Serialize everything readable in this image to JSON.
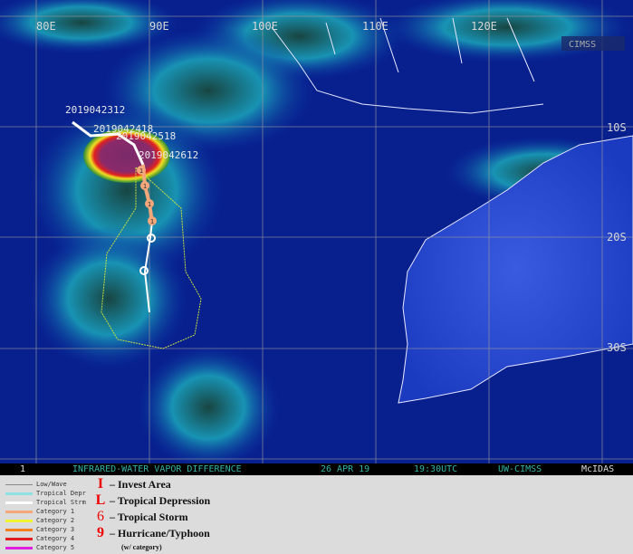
{
  "map": {
    "longitude_labels": [
      "80E",
      "90E",
      "100E",
      "110E",
      "120E"
    ],
    "latitude_labels": [
      "10S",
      "20S",
      "30S"
    ],
    "logo_text": "CIMSS",
    "track": {
      "fix_labels": [
        "2019042312",
        "2019042418",
        "2019042518",
        "2019042612"
      ],
      "category_marker": "1",
      "colors": {
        "tropical_storm": "#ffffff",
        "category_1": "#f4a77a",
        "cone": "#c8e040"
      }
    }
  },
  "status_bar": {
    "frame": "1",
    "product": "INFRARED-WATER VAPOR DIFFERENCE",
    "date": "26 APR 19",
    "time": "19:30UTC",
    "source": "UW-CIMSS",
    "software": "McIDAS"
  },
  "legend": {
    "lines": [
      {
        "label": "Low/Wave",
        "color": "#888888"
      },
      {
        "label": "Tropical Depr",
        "color": "#8fe0e0"
      },
      {
        "label": "Tropical Strm",
        "color": "#ffffff"
      },
      {
        "label": "Category 1",
        "color": "#f4a77a"
      },
      {
        "label": "Category 2",
        "color": "#f4f430"
      },
      {
        "label": "Category 3",
        "color": "#f08020"
      },
      {
        "label": "Category 4",
        "color": "#e02020"
      },
      {
        "label": "Category 5",
        "color": "#e020e0"
      }
    ],
    "symbols": [
      {
        "glyph": "I",
        "label": "– Invest Area"
      },
      {
        "glyph": "L",
        "label": "– Tropical Depression"
      },
      {
        "glyph": "6",
        "label": "– Tropical Storm"
      },
      {
        "glyph": "9",
        "label": "– Hurricane/Typhoon"
      }
    ],
    "note": "(w/ category)"
  }
}
